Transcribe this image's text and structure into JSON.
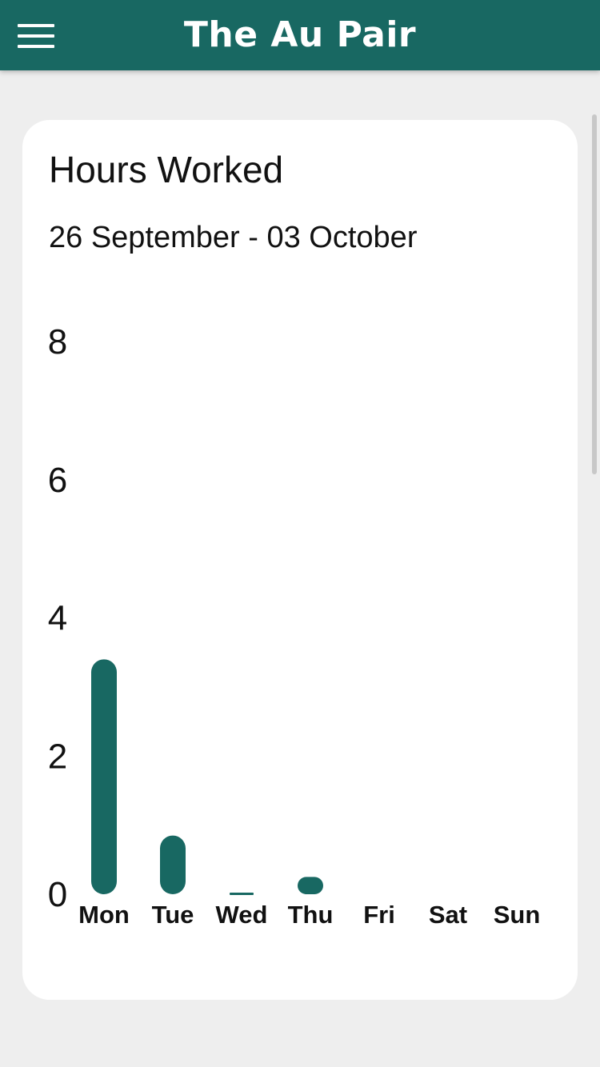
{
  "header": {
    "title": "The Au Pair",
    "menu_icon": "hamburger-menu-icon"
  },
  "card": {
    "title": "Hours Worked",
    "date_range": "26 September - 03 October"
  },
  "colors": {
    "brand": "#186862",
    "background": "#eeeeee",
    "card": "#ffffff"
  },
  "chart_data": {
    "type": "bar",
    "categories": [
      "Mon",
      "Tue",
      "Wed",
      "Thu",
      "Fri",
      "Sat",
      "Sun"
    ],
    "values": [
      3.4,
      0.85,
      0.02,
      0.25,
      0,
      0,
      0
    ],
    "yticks": [
      "0",
      "2",
      "4",
      "6",
      "8"
    ],
    "ylim": [
      0,
      8
    ],
    "grid": false,
    "legend": "none",
    "bar_color": "#186862"
  }
}
